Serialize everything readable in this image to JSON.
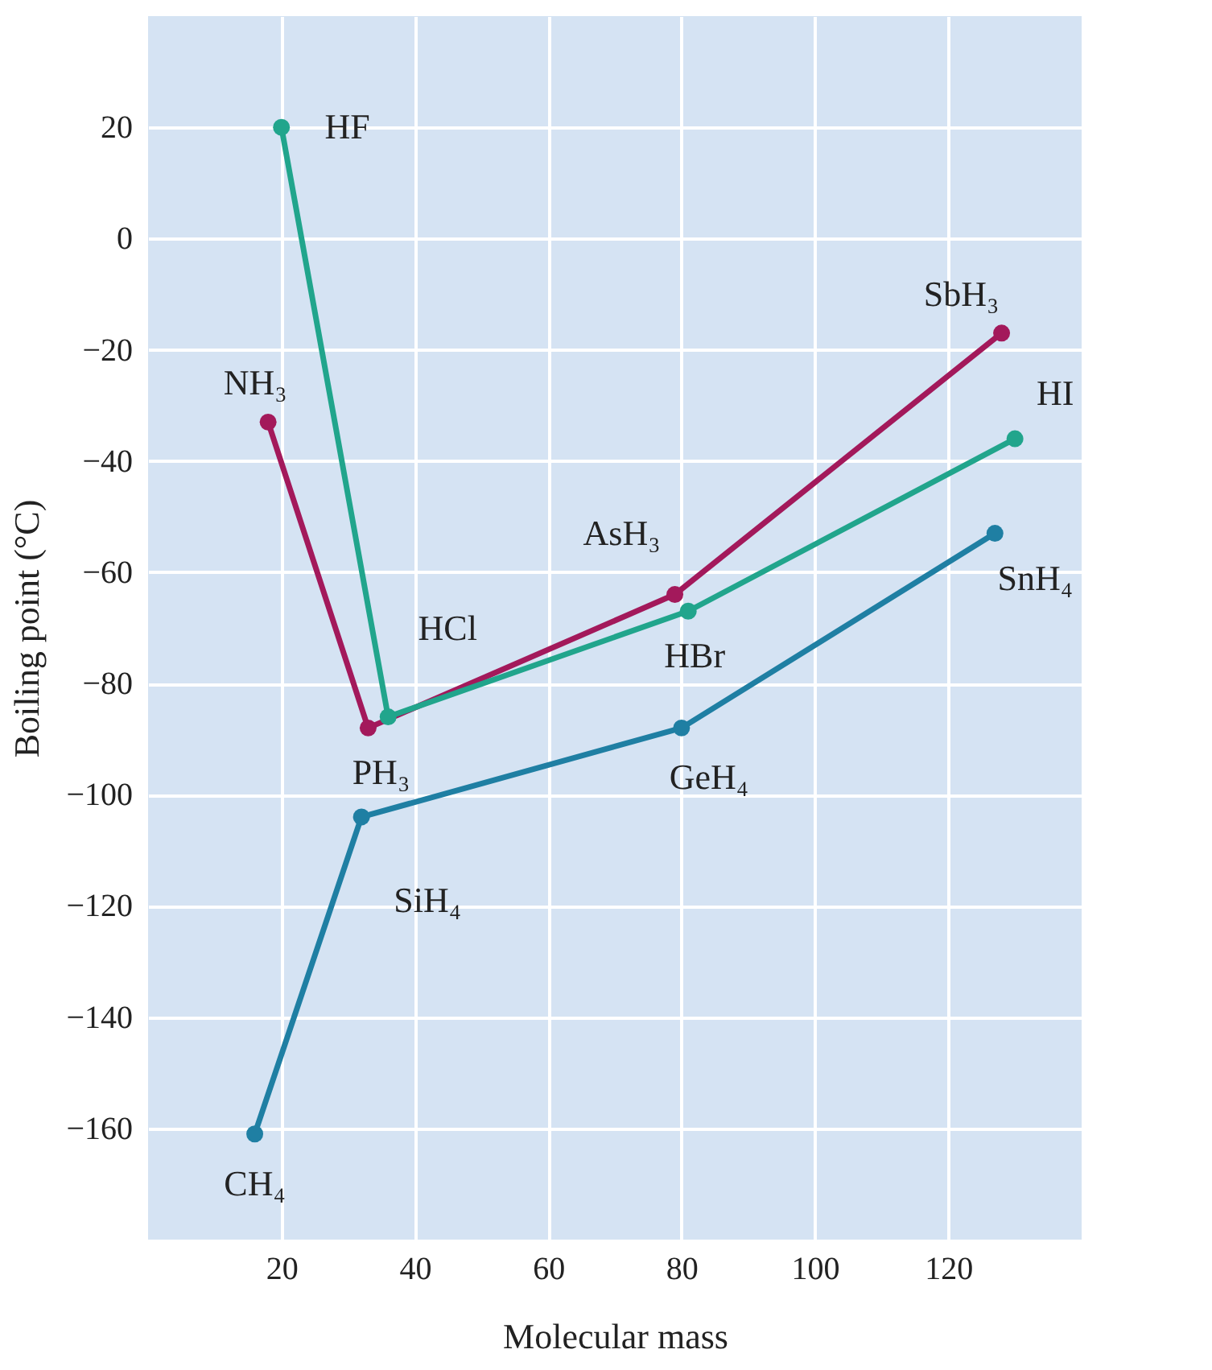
{
  "chart_data": {
    "type": "line",
    "xlabel": "Molecular mass",
    "ylabel": "Boiling point (°C)",
    "xlim": [
      0,
      140
    ],
    "ylim": [
      -180,
      40
    ],
    "xticks": [
      20,
      40,
      60,
      80,
      100,
      120
    ],
    "yticks": [
      20,
      0,
      -20,
      -40,
      -60,
      -80,
      -100,
      -120,
      -140,
      -160
    ],
    "grid": true,
    "marker": "circle",
    "legend": false,
    "series": [
      {
        "color": "#1f7fa3",
        "x": [
          16,
          32,
          80,
          127
        ],
        "values": [
          -161,
          -104,
          -88,
          -53
        ]
      },
      {
        "color": "#a3195b",
        "x": [
          18,
          33,
          79,
          128
        ],
        "values": [
          -33,
          -88,
          -64,
          -17
        ]
      },
      {
        "color": "#21a58c",
        "x": [
          20,
          36,
          81,
          130
        ],
        "values": [
          20,
          -86,
          -67,
          -36
        ]
      }
    ],
    "annotations": [
      {
        "text": "HF",
        "x": 20,
        "y": 20
      },
      {
        "text": "NH₃",
        "x": 18,
        "y": -33
      },
      {
        "text": "HCl",
        "x": 36,
        "y": -86
      },
      {
        "text": "PH₃",
        "x": 33,
        "y": -88
      },
      {
        "text": "AsH₃",
        "x": 79,
        "y": -64
      },
      {
        "text": "HBr",
        "x": 81,
        "y": -67
      },
      {
        "text": "GeH₄",
        "x": 80,
        "y": -88
      },
      {
        "text": "SiH₄",
        "x": 32,
        "y": -104
      },
      {
        "text": "CH₄",
        "x": 16,
        "y": -161
      },
      {
        "text": "SbH₃",
        "x": 128,
        "y": -17
      },
      {
        "text": "HI",
        "x": 130,
        "y": -36
      },
      {
        "text": "SnH₄",
        "x": 127,
        "y": -53
      }
    ]
  }
}
